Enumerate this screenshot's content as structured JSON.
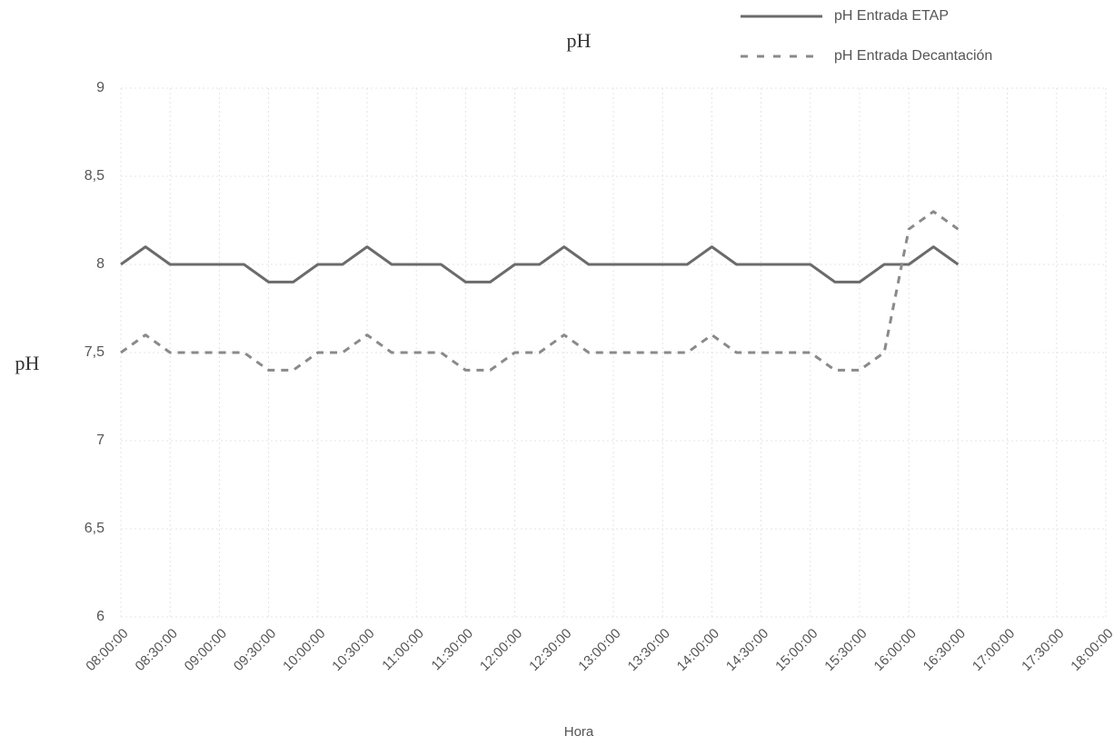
{
  "chart_data": {
    "type": "line",
    "title": "pH",
    "x_label": "Hora",
    "y_label": "pH",
    "categories": [
      "08:00:00",
      null,
      "08:30:00",
      null,
      "09:00:00",
      null,
      "09:30:00",
      null,
      "10:00:00",
      null,
      "10:30:00",
      null,
      "11:00:00",
      null,
      "11:30:00",
      null,
      "12:00:00",
      null,
      "12:30:00",
      null,
      "13:00:00",
      null,
      "13:30:00",
      null,
      "14:00:00",
      null,
      "14:30:00",
      null,
      "15:00:00",
      null,
      "15:30:00",
      null,
      "16:00:00",
      null,
      "16:30:00",
      null,
      "17:00:00",
      null,
      "17:30:00",
      null,
      "18:00:00"
    ],
    "series": [
      {
        "name": "pH Entrada ETAP",
        "color": "#6b6b6b",
        "dash": false,
        "values": [
          8.0,
          8.1,
          8.0,
          8.0,
          8.0,
          8.0,
          7.9,
          7.9,
          8.0,
          8.0,
          8.1,
          8.0,
          8.0,
          8.0,
          7.9,
          7.9,
          8.0,
          8.0,
          8.1,
          8.0,
          8.0,
          8.0,
          8.0,
          8.0,
          8.1,
          8.0,
          8.0,
          8.0,
          8.0,
          7.9,
          7.9,
          8.0,
          8.0,
          8.1,
          8.0,
          null,
          null,
          null,
          null,
          null,
          null
        ]
      },
      {
        "name": "pH Entrada Decantación",
        "color": "#8a8a8a",
        "dash": true,
        "values": [
          7.5,
          7.6,
          7.5,
          7.5,
          7.5,
          7.5,
          7.4,
          7.4,
          7.5,
          7.5,
          7.6,
          7.5,
          7.5,
          7.5,
          7.4,
          7.4,
          7.5,
          7.5,
          7.6,
          7.5,
          7.5,
          7.5,
          7.5,
          7.5,
          7.6,
          7.5,
          7.5,
          7.5,
          7.5,
          7.4,
          7.4,
          7.5,
          8.2,
          8.3,
          8.2,
          null,
          null,
          null,
          null,
          null,
          null
        ]
      }
    ],
    "ylim": [
      6,
      9
    ],
    "yticks": [
      6,
      {
        "value": 6.5,
        "label": "6,5"
      },
      7,
      {
        "value": 7.5,
        "label": "7,5"
      },
      8,
      {
        "value": 8.5,
        "label": "8,5"
      },
      9
    ],
    "grid": true
  }
}
